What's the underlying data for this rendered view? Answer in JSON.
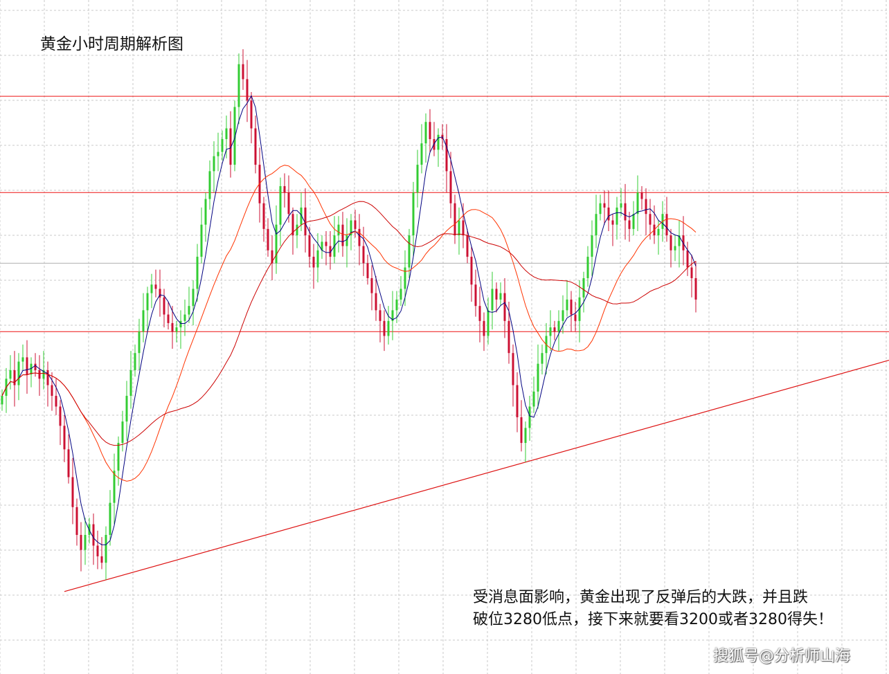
{
  "chart_data": {
    "type": "candlestick",
    "title": "黄金小时周期解析图",
    "annotation_lines": [
      "受消息面影响，黄金出现了反弹后的大跌，并且跌",
      "破位3280低点，接下来就要看3200或者3280得失！"
    ],
    "watermark": "搜狐号@分析师山海",
    "grid": true,
    "colors": {
      "up": "#33cc33",
      "down": "#cc1133",
      "ma_fast": "#000080",
      "ma_mid": "#ff3300",
      "ma_slow": "#cc0000",
      "level_line": "#ee1111",
      "trend_line": "#dd1111",
      "grid": "#c8c8c8"
    },
    "price_levels": [
      {
        "name": "resistance-top",
        "value": 3390
      },
      {
        "name": "resistance-mid",
        "value": 3345
      },
      {
        "name": "support",
        "value": 3280
      }
    ],
    "reference_level": 3312,
    "y_range": [
      3120,
      3435
    ],
    "bar_count": 168,
    "closes": [
      3250,
      3258,
      3262,
      3255,
      3266,
      3268,
      3260,
      3265,
      3262,
      3258,
      3262,
      3255,
      3250,
      3245,
      3236,
      3225,
      3212,
      3198,
      3185,
      3178,
      3185,
      3190,
      3180,
      3175,
      3172,
      3185,
      3200,
      3215,
      3228,
      3238,
      3250,
      3262,
      3270,
      3280,
      3290,
      3298,
      3302,
      3300,
      3296,
      3288,
      3284,
      3280,
      3282,
      3285,
      3288,
      3292,
      3300,
      3315,
      3330,
      3342,
      3355,
      3362,
      3364,
      3370,
      3375,
      3358,
      3385,
      3405,
      3398,
      3388,
      3375,
      3358,
      3340,
      3328,
      3318,
      3312,
      3330,
      3348,
      3345,
      3335,
      3325,
      3330,
      3338,
      3325,
      3315,
      3310,
      3318,
      3322,
      3320,
      3315,
      3325,
      3330,
      3320,
      3325,
      3332,
      3328,
      3320,
      3312,
      3305,
      3298,
      3290,
      3285,
      3278,
      3285,
      3290,
      3295,
      3300,
      3310,
      3325,
      3345,
      3358,
      3368,
      3378,
      3370,
      3365,
      3372,
      3370,
      3355,
      3340,
      3325,
      3332,
      3325,
      3315,
      3302,
      3292,
      3285,
      3278,
      3290,
      3300,
      3295,
      3298,
      3285,
      3270,
      3255,
      3240,
      3228,
      3235,
      3245,
      3252,
      3265,
      3270,
      3278,
      3282,
      3280,
      3285,
      3290,
      3295,
      3288,
      3285,
      3296,
      3305,
      3315,
      3325,
      3335,
      3340,
      3338,
      3332,
      3330,
      3338,
      3340,
      3332,
      3328,
      3335,
      3345,
      3342,
      3335,
      3330,
      3325,
      3328,
      3335,
      3325,
      3318,
      3320,
      3325,
      3318,
      3310,
      3305,
      3295
    ]
  }
}
